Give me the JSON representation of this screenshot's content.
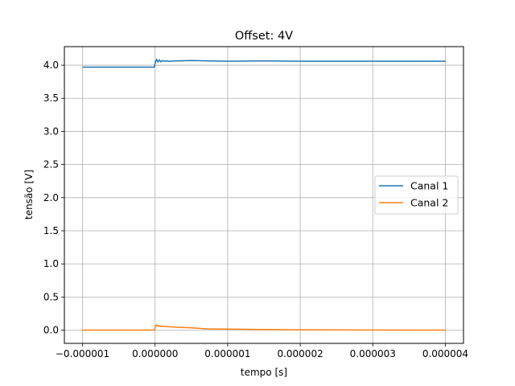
{
  "chart_data": {
    "type": "line",
    "title": "Offset: 4V",
    "xlabel": "tempo [s]",
    "ylabel": "tensão [V]",
    "xlim": [
      -1.25e-06,
      4.25e-06
    ],
    "ylim": [
      -0.2,
      4.28
    ],
    "x_ticks": [
      -1e-06,
      0,
      1e-06,
      2e-06,
      3e-06,
      4e-06
    ],
    "x_tick_labels": [
      "−0.000001",
      "0.000000",
      "0.000001",
      "0.000002",
      "0.000003",
      "0.000004"
    ],
    "y_ticks": [
      0.0,
      0.5,
      1.0,
      1.5,
      2.0,
      2.5,
      3.0,
      3.5,
      4.0
    ],
    "y_tick_labels": [
      "0.0",
      "0.5",
      "1.0",
      "1.5",
      "2.0",
      "2.5",
      "3.0",
      "3.5",
      "4.0"
    ],
    "grid": true,
    "legend_position": "center-right",
    "series": [
      {
        "name": "Canal 1",
        "color": "#1f77b4",
        "x": [
          -1e-06,
          -5e-07,
          -1e-08,
          0.0,
          2e-08,
          4e-08,
          6e-08,
          8e-08,
          1e-07,
          1.2e-07,
          1.5e-07,
          2e-07,
          3e-07,
          5e-07,
          1e-06,
          1.5e-06,
          2e-06,
          2.5e-06,
          3e-06,
          3.5e-06,
          4e-06
        ],
        "y": [
          3.97,
          3.97,
          3.97,
          4.03,
          4.09,
          4.05,
          4.08,
          4.05,
          4.07,
          4.06,
          4.065,
          4.06,
          4.065,
          4.07,
          4.06,
          4.065,
          4.06,
          4.06,
          4.06,
          4.06,
          4.06
        ]
      },
      {
        "name": "Canal 2",
        "color": "#ff7f0e",
        "x": [
          -1e-06,
          -5e-07,
          -1e-08,
          0.0,
          2e-08,
          4e-08,
          6e-08,
          8e-08,
          1e-07,
          1.5e-07,
          2e-07,
          3e-07,
          4e-07,
          5e-07,
          7e-07,
          1e-06,
          1.5e-06,
          2e-06,
          2.5e-06,
          3e-06,
          3.5e-06,
          4e-06
        ],
        "y": [
          0.0,
          0.0,
          0.0,
          0.05,
          0.08,
          0.06,
          0.07,
          0.055,
          0.06,
          0.055,
          0.05,
          0.045,
          0.04,
          0.035,
          0.02,
          0.015,
          0.01,
          0.005,
          0.003,
          0.002,
          0.001,
          0.0
        ]
      }
    ]
  }
}
